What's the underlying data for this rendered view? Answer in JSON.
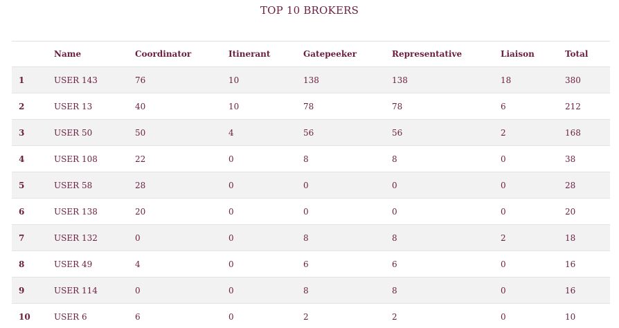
{
  "title": "TOP 10 BROKERS",
  "table": {
    "headers": {
      "rank": "",
      "name": "Name",
      "coordinator": "Coordinator",
      "itinerant": "Itinerant",
      "gatepeeker": "Gatepeeker",
      "representative": "Representative",
      "liaison": "Liaison",
      "total": "Total"
    },
    "rows": [
      {
        "rank": "1",
        "name": "USER 143",
        "coordinator": "76",
        "itinerant": "10",
        "gatepeeker": "138",
        "representative": "138",
        "liaison": "18",
        "total": "380"
      },
      {
        "rank": "2",
        "name": "USER 13",
        "coordinator": "40",
        "itinerant": "10",
        "gatepeeker": "78",
        "representative": "78",
        "liaison": "6",
        "total": "212"
      },
      {
        "rank": "3",
        "name": "USER 50",
        "coordinator": "50",
        "itinerant": "4",
        "gatepeeker": "56",
        "representative": "56",
        "liaison": "2",
        "total": "168"
      },
      {
        "rank": "4",
        "name": "USER 108",
        "coordinator": "22",
        "itinerant": "0",
        "gatepeeker": "8",
        "representative": "8",
        "liaison": "0",
        "total": "38"
      },
      {
        "rank": "5",
        "name": "USER 58",
        "coordinator": "28",
        "itinerant": "0",
        "gatepeeker": "0",
        "representative": "0",
        "liaison": "0",
        "total": "28"
      },
      {
        "rank": "6",
        "name": "USER 138",
        "coordinator": "20",
        "itinerant": "0",
        "gatepeeker": "0",
        "representative": "0",
        "liaison": "0",
        "total": "20"
      },
      {
        "rank": "7",
        "name": "USER 132",
        "coordinator": "0",
        "itinerant": "0",
        "gatepeeker": "8",
        "representative": "8",
        "liaison": "2",
        "total": "18"
      },
      {
        "rank": "8",
        "name": "USER 49",
        "coordinator": "4",
        "itinerant": "0",
        "gatepeeker": "6",
        "representative": "6",
        "liaison": "0",
        "total": "16"
      },
      {
        "rank": "9",
        "name": "USER 114",
        "coordinator": "0",
        "itinerant": "0",
        "gatepeeker": "8",
        "representative": "8",
        "liaison": "0",
        "total": "16"
      },
      {
        "rank": "10",
        "name": "USER 6",
        "coordinator": "6",
        "itinerant": "0",
        "gatepeeker": "2",
        "representative": "2",
        "liaison": "0",
        "total": "10"
      }
    ]
  },
  "colors": {
    "text": "#6b1d3f",
    "row_stripe": "#f2f2f2"
  }
}
